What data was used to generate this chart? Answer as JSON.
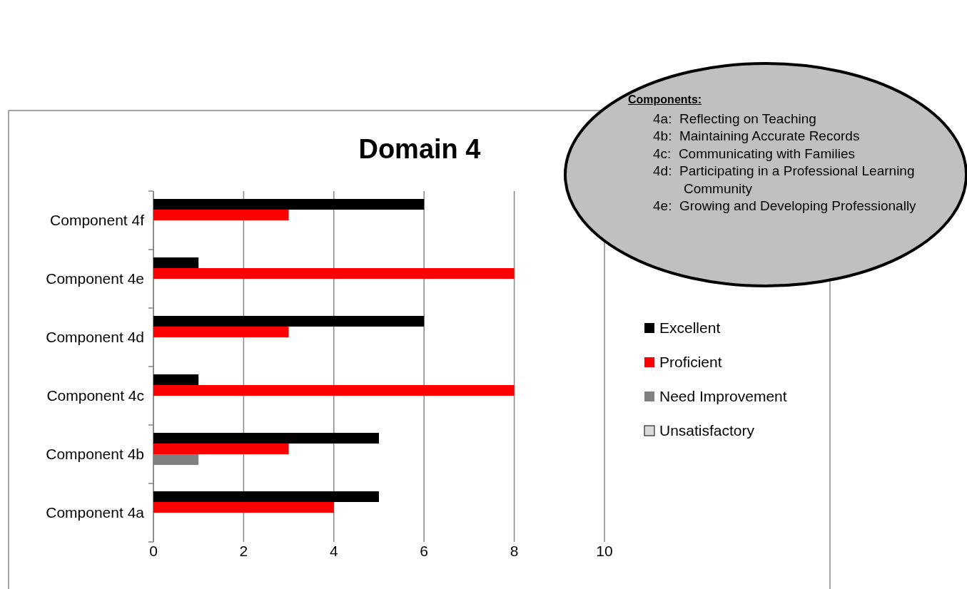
{
  "chart_data": {
    "type": "bar",
    "orientation": "horizontal",
    "title": "Domain 4",
    "categories": [
      "Component 4f",
      "Component 4e",
      "Component 4d",
      "Component 4c",
      "Component 4b",
      "Component 4a"
    ],
    "series": [
      {
        "name": "Excellent",
        "color": "#000000",
        "values": [
          6,
          1,
          6,
          1,
          5,
          5
        ]
      },
      {
        "name": "Proficient",
        "color": "#ff0000",
        "values": [
          3,
          8,
          3,
          8,
          3,
          4
        ]
      },
      {
        "name": "Need Improvement",
        "color": "#808080",
        "values": [
          0,
          0,
          0,
          0,
          1,
          0
        ]
      },
      {
        "name": "Unsatisfactory",
        "color": "#d9d9d9",
        "values": [
          0,
          0,
          0,
          0,
          0,
          0
        ]
      }
    ],
    "xlim": [
      0,
      10
    ],
    "xticks": [
      0,
      2,
      4,
      6,
      8,
      10
    ],
    "grid": "x",
    "legend": "right",
    "annotations": [
      "Components:",
      "4a:  Reflecting on Teaching",
      "4b:  Maintaining Accurate Records",
      "4c:  Communicating with Families",
      "4d:  Participating in a Professional Learning Community",
      "4e:  Growing and Developing Professionally"
    ]
  }
}
